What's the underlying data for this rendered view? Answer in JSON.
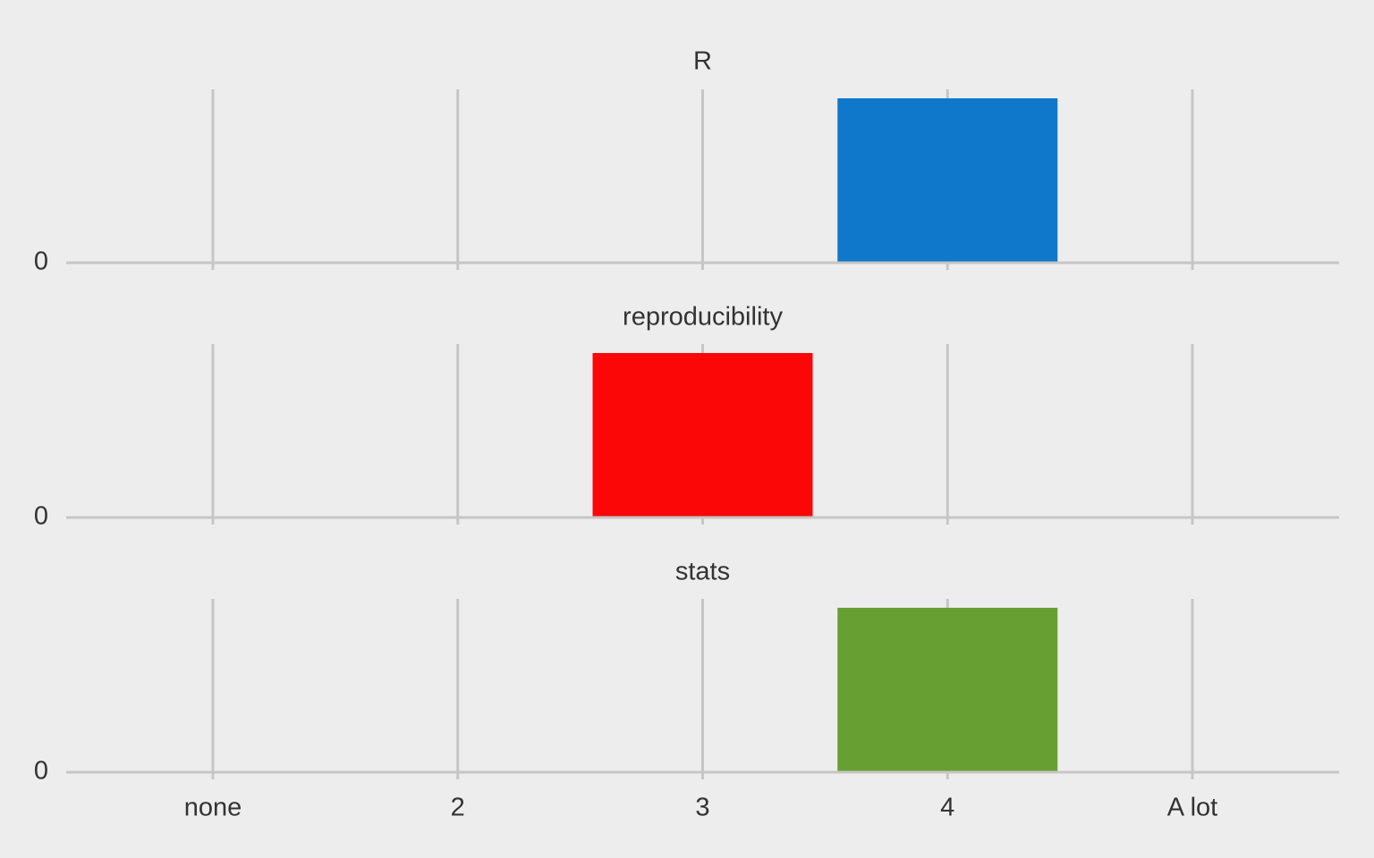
{
  "chart_data": {
    "type": "bar",
    "layout": "facet-rows",
    "categories": [
      "none",
      "2",
      "3",
      "4",
      "A lot"
    ],
    "y_tick_labels": [
      "0"
    ],
    "grid": true,
    "legend": "none",
    "facets": [
      {
        "title": "R",
        "values": [
          0,
          0,
          0,
          1,
          0
        ],
        "color": "#0f78cb"
      },
      {
        "title": "reproducibility",
        "values": [
          0,
          0,
          1,
          0,
          0
        ],
        "color": "#fb0707"
      },
      {
        "title": "stats",
        "values": [
          0,
          0,
          0,
          1,
          0
        ],
        "color": "#679f33"
      }
    ]
  }
}
